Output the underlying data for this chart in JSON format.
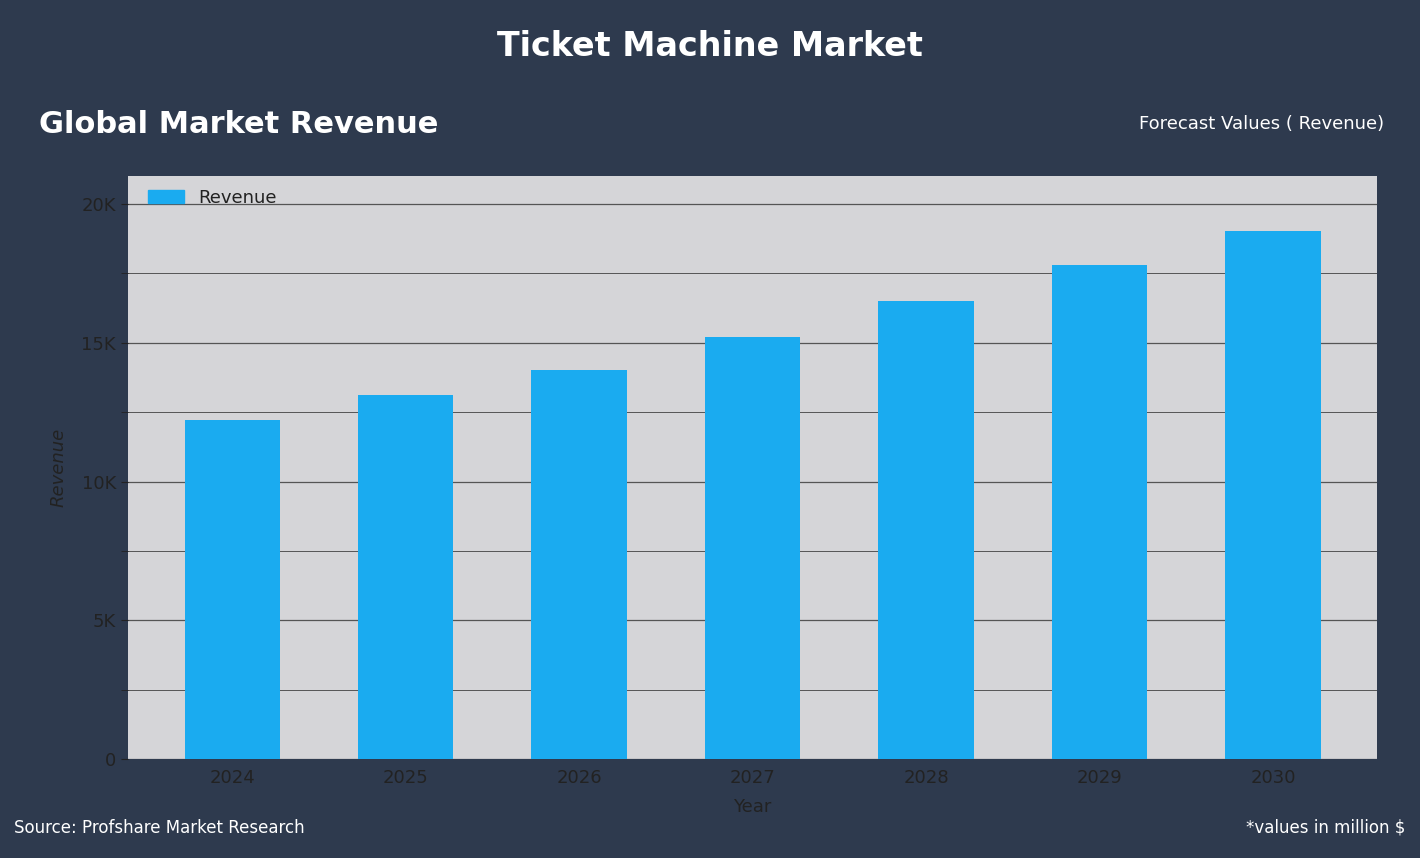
{
  "title": "Ticket Machine Market",
  "subtitle_box": "Global Market Revenue",
  "forecast_label": "Forecast Values ( Revenue)",
  "source_label": "Source: Profshare Market Research",
  "values_label": "*values in million $",
  "xlabel": "Year",
  "ylabel": "Revenue",
  "legend_label": "Revenue",
  "categories": [
    2024,
    2025,
    2026,
    2027,
    2028,
    2029,
    2030
  ],
  "values": [
    12200,
    13100,
    14000,
    15200,
    16500,
    17800,
    19000
  ],
  "bar_color": "#1AABF0",
  "bg_outer": "#2E3A4E",
  "bg_chart": "#D5D5D8",
  "title_color": "#FFFFFF",
  "subtitle_box_color": "#5B7BB0",
  "subtitle_text_color": "#FFFFFF",
  "forecast_color": "#FFFFFF",
  "axis_label_color": "#222222",
  "tick_color": "#222222",
  "source_color": "#FFFFFF",
  "ylim": [
    0,
    21000
  ],
  "yticks": [
    0,
    5000,
    10000,
    15000,
    20000
  ],
  "ytick_labels": [
    "0",
    "5K",
    "10K",
    "15K",
    "20K"
  ],
  "grid_color": "#555555",
  "title_fontsize": 24,
  "subtitle_fontsize": 22,
  "axis_label_fontsize": 13,
  "tick_fontsize": 13,
  "legend_fontsize": 13,
  "source_fontsize": 12,
  "forecast_fontsize": 13
}
